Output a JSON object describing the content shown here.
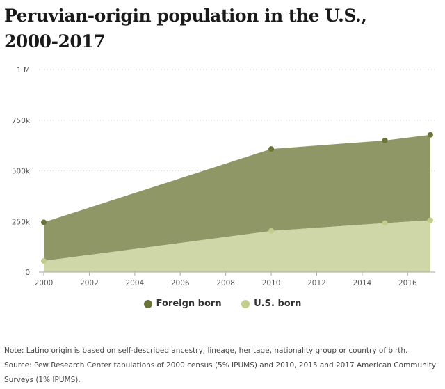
{
  "title_line1": "Peruvian-origin population in the U.S.,",
  "title_line2": "2000-2017",
  "chart_data": {
    "type": "area",
    "stacked": true,
    "title": "Peruvian-origin population in the U.S., 2000-2017",
    "x": [
      2000,
      2010,
      2015,
      2017
    ],
    "xticks": [
      "2000",
      "2002",
      "2004",
      "2006",
      "2008",
      "2010",
      "2012",
      "2014",
      "2016"
    ],
    "xlim": [
      2000,
      2017
    ],
    "yticks": [
      {
        "value": 0,
        "label": "0"
      },
      {
        "value": 250000,
        "label": "250k"
      },
      {
        "value": 500000,
        "label": "500k"
      },
      {
        "value": 750000,
        "label": "750k"
      },
      {
        "value": 1000000,
        "label": "1 M"
      }
    ],
    "ylim": [
      0,
      1000000
    ],
    "grid": true,
    "legend_position": "bottom",
    "series": [
      {
        "name": "U.S. born",
        "values": [
          55000,
          203000,
          242000,
          256000
        ],
        "color": "#cfd6a8",
        "dot_color": "#c2cd8c"
      },
      {
        "name": "Foreign born",
        "values": [
          191000,
          405000,
          408000,
          422000
        ],
        "color": "#8f9767",
        "dot_color": "#6b7439"
      }
    ]
  },
  "legend": {
    "foreign_born": "Foreign born",
    "us_born": "U.S. born",
    "foreign_color": "#6b7439",
    "us_color": "#c2cd8c"
  },
  "notes": {
    "note": "Note: Latino origin is based on self-described ancestry, lineage, heritage, nationality group or country of birth.",
    "source": "Source: Pew Research Center tabulations of 2000 census (5% IPUMS) and 2010, 2015 and 2017 American Community Surveys (1% IPUMS)."
  }
}
